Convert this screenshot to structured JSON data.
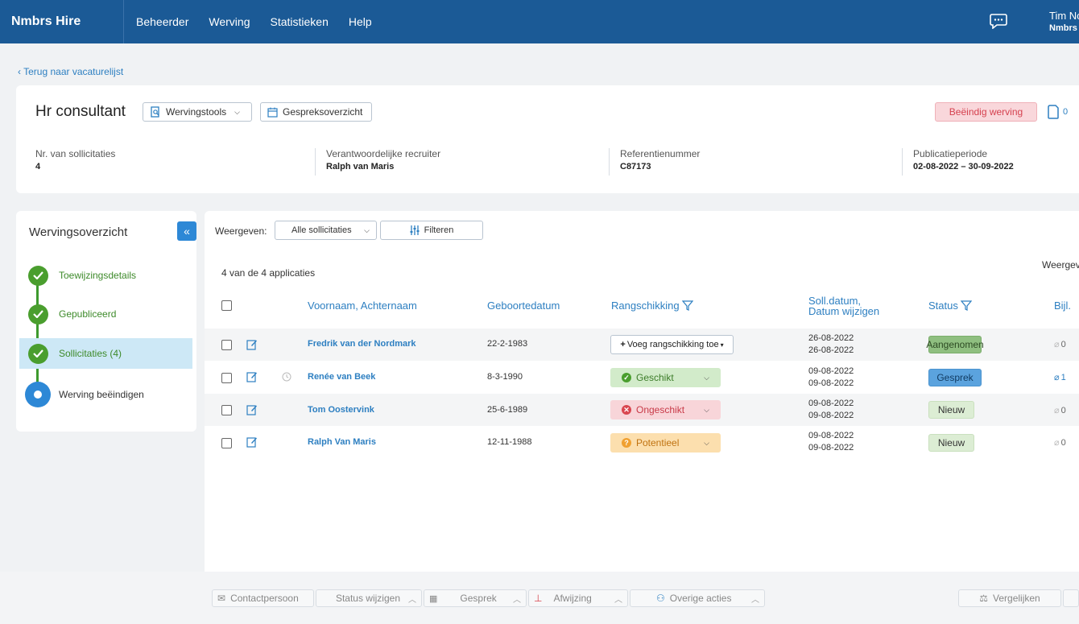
{
  "topbar": {
    "brand": "Nmbrs Hire",
    "nav": [
      "Beheerder",
      "Werving",
      "Statistieken",
      "Help"
    ],
    "user_name": "Tim No",
    "user_company": "Nmbrs"
  },
  "back_link": "Terug naar vacaturelijst",
  "header": {
    "title": "Hr consultant",
    "tools_label": "Wervingstools",
    "interview_label": "Gespreksoverzicht",
    "end_label": "Beëindig werving",
    "doc_count": "0",
    "meta": [
      {
        "label": "Nr. van sollicitaties",
        "value": "4"
      },
      {
        "label": "Verantwoordelijke recruiter",
        "value": "Ralph van Maris"
      },
      {
        "label": "Referentienummer",
        "value": "C87173"
      },
      {
        "label": "Publicatieperiode",
        "value": "02-08-2022 – 30-09-2022"
      }
    ]
  },
  "sidebar": {
    "title": "Wervingsoverzicht",
    "steps": [
      {
        "label": "Toewijzingsdetails"
      },
      {
        "label": "Gepubliceerd"
      },
      {
        "label": "Sollicitaties (4)"
      },
      {
        "label": "Werving beëindigen"
      }
    ]
  },
  "list": {
    "show_label": "Weergeven:",
    "show_value": "Alle sollicitaties",
    "filter_label": "Filteren",
    "count_text": "4 van de 4 applicaties",
    "right_label": "Weergeven",
    "columns": {
      "name": "Voornaam, Achternaam",
      "birth": "Geboortedatum",
      "rank": "Rangschikking",
      "date1": "Soll.datum,",
      "date2": "Datum wijzigen",
      "status": "Status",
      "att": "Bijl."
    },
    "rows": [
      {
        "name": "Fredrik van der Nordmark",
        "birth": "22-2-1983",
        "rank": "Voeg rangschikking toe",
        "d1": "26-08-2022",
        "d2": "26-08-2022",
        "status": "Aangenomen",
        "att": "0"
      },
      {
        "name": "Renée van Beek",
        "birth": "8-3-1990",
        "rank": "Geschikt",
        "d1": "09-08-2022",
        "d2": "09-08-2022",
        "status": "Gesprek",
        "att": "1"
      },
      {
        "name": "Tom Oostervink",
        "birth": "25-6-1989",
        "rank": "Ongeschikt",
        "d1": "09-08-2022",
        "d2": "09-08-2022",
        "status": "Nieuw",
        "att": "0"
      },
      {
        "name": "Ralph Van Maris",
        "birth": "12-11-1988",
        "rank": "Potentieel",
        "d1": "09-08-2022",
        "d2": "09-08-2022",
        "status": "Nieuw",
        "att": "0"
      }
    ]
  },
  "bottom": {
    "contact": "Contactpersoon",
    "status": "Status wijzigen",
    "interview": "Gesprek",
    "reject": "Afwijzing",
    "other": "Overige acties",
    "compare": "Vergelijken"
  }
}
